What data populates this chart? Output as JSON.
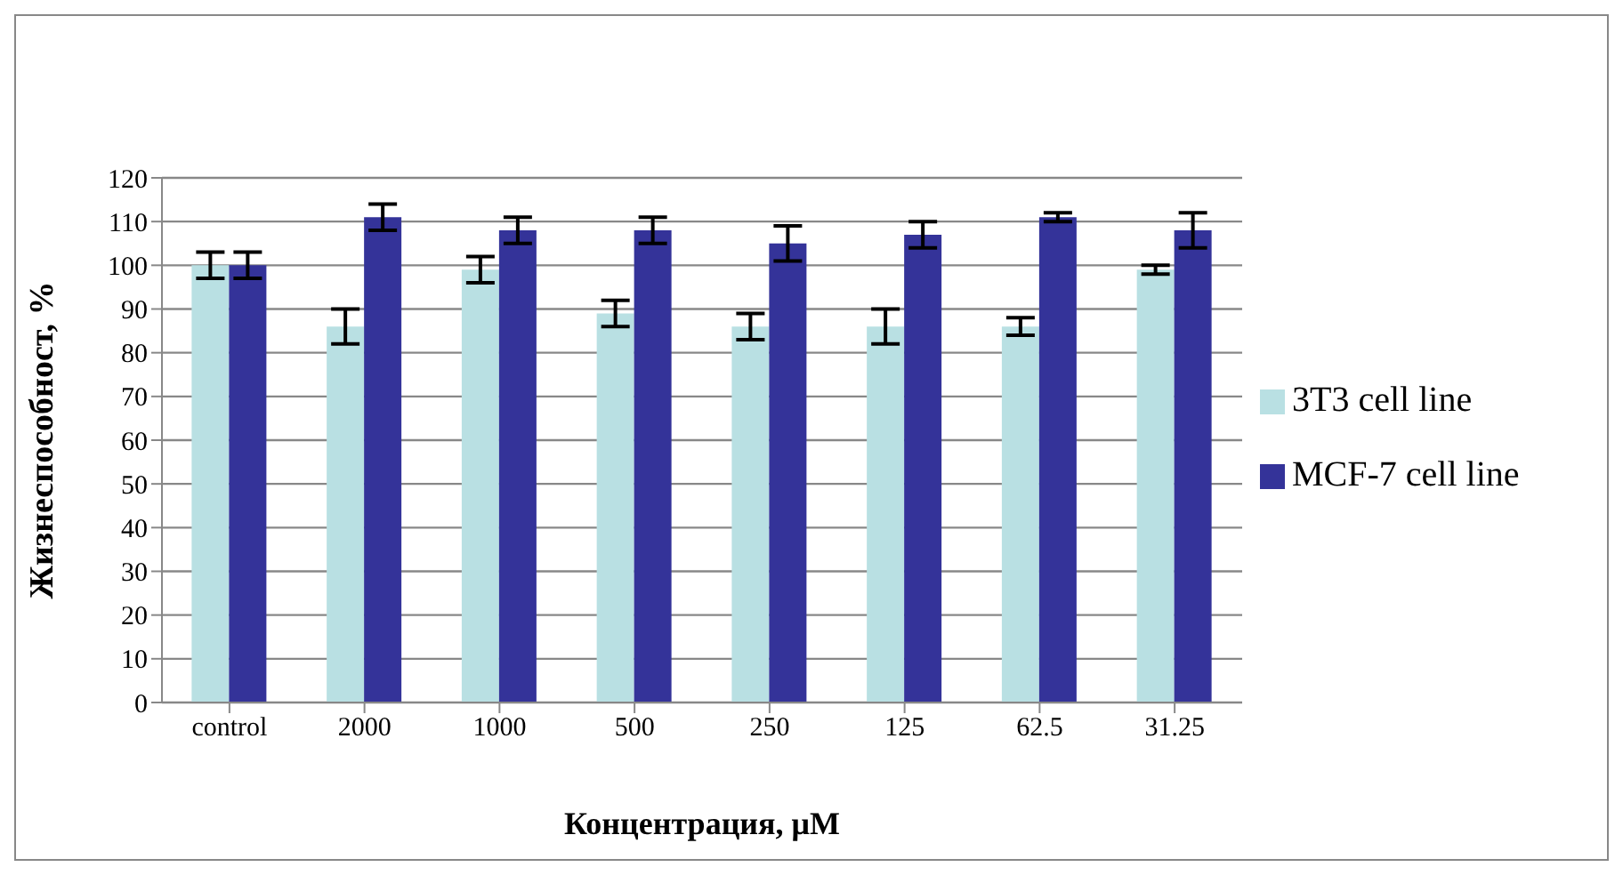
{
  "chart_data": {
    "type": "bar",
    "xlabel": "Концентрация, μM",
    "ylabel": "Жизнеспособност, %",
    "categories": [
      "control",
      "2000",
      "1000",
      "500",
      "250",
      "125",
      "62.5",
      "31.25"
    ],
    "series": [
      {
        "name": "3T3 cell line",
        "color": "#b9e0e3",
        "values": [
          100,
          86,
          99,
          89,
          86,
          86,
          86,
          99
        ],
        "errors": [
          3,
          4,
          3,
          3,
          3,
          4,
          2,
          1
        ]
      },
      {
        "name": "MCF-7 cell line",
        "color": "#343399",
        "values": [
          100,
          111,
          108,
          108,
          105,
          107,
          111,
          108
        ],
        "errors": [
          3,
          3,
          3,
          3,
          4,
          3,
          1,
          4
        ]
      }
    ],
    "ylim": [
      0,
      120
    ],
    "yticks": [
      0,
      10,
      20,
      30,
      40,
      50,
      60,
      70,
      80,
      90,
      100,
      110,
      120
    ],
    "grid": "y",
    "legend": "right"
  }
}
